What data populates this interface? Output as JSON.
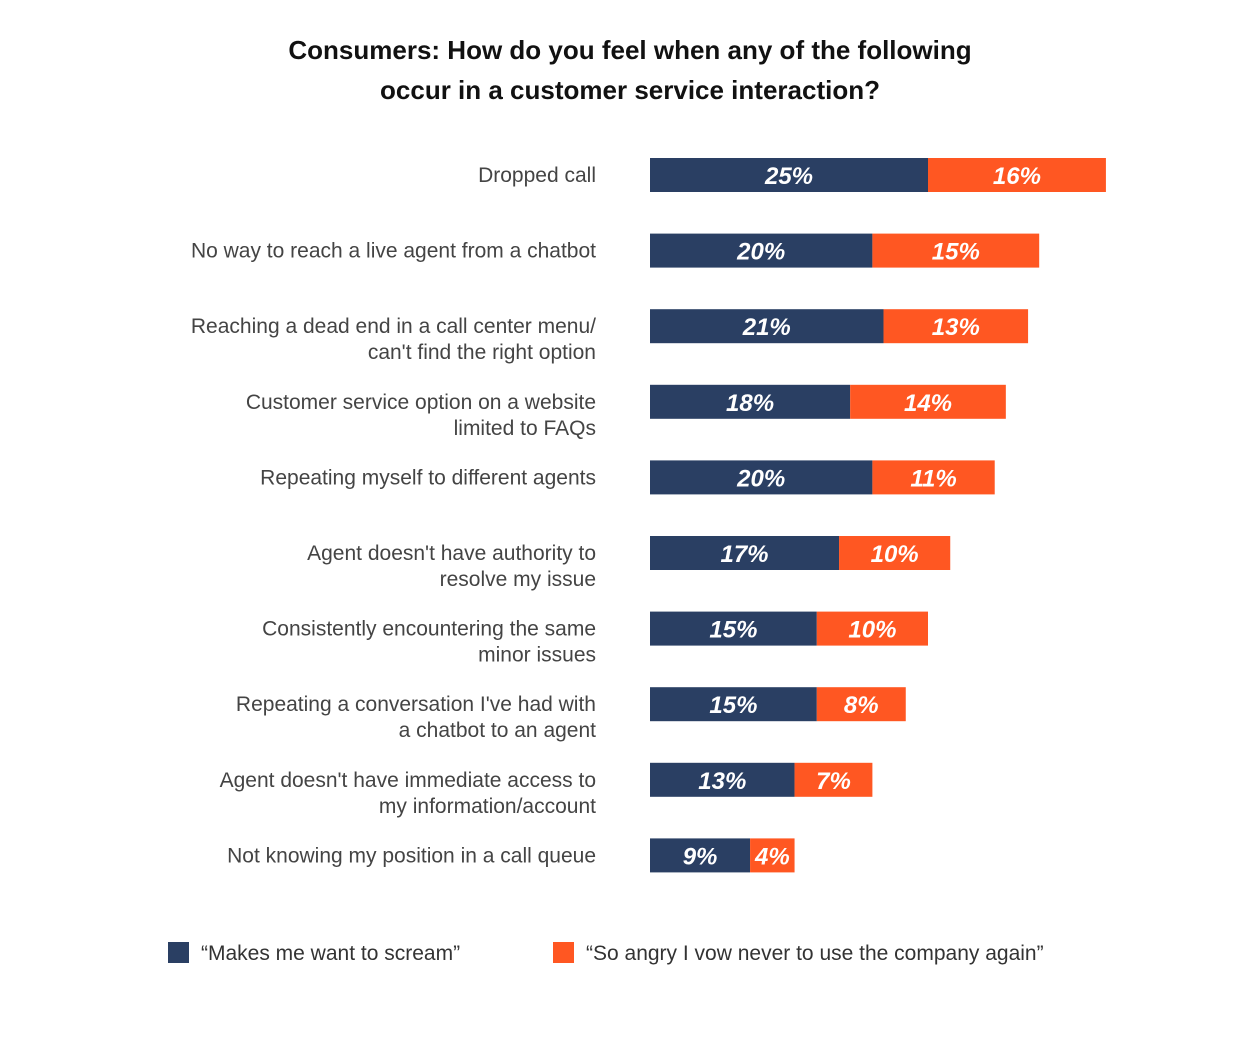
{
  "chart_data": {
    "type": "bar",
    "orientation": "horizontal",
    "stacked": true,
    "title": "Consumers: How do you feel when any of the following occur in a customer service interaction?",
    "title_lines": [
      "Consumers: How do you feel when any of the following",
      "occur in a customer service interaction?"
    ],
    "categories": [
      [
        "Dropped call"
      ],
      [
        "No way to reach a live agent from a chatbot"
      ],
      [
        "Reaching a dead end in a call center menu/",
        "can't find the right option"
      ],
      [
        "Customer service option on a website",
        "limited to FAQs"
      ],
      [
        "Repeating myself to different agents"
      ],
      [
        "Agent doesn't have authority to",
        "resolve my issue"
      ],
      [
        "Consistently encountering the same",
        "minor issues"
      ],
      [
        "Repeating a conversation I've had with",
        "a chatbot to an agent"
      ],
      [
        "Agent doesn't have immediate access to",
        "my information/account"
      ],
      [
        "Not knowing my position in a call queue"
      ]
    ],
    "series": [
      {
        "name": "“Makes me want to scream”",
        "color": "#2a3f63",
        "values": [
          25,
          20,
          21,
          18,
          20,
          17,
          15,
          15,
          13,
          9
        ]
      },
      {
        "name": "“So angry I vow never to use the company again”",
        "color": "#ff5722",
        "values": [
          16,
          15,
          13,
          14,
          11,
          10,
          10,
          8,
          7,
          4
        ]
      }
    ],
    "value_suffix": "%",
    "legend_position": "bottom",
    "grid": false
  }
}
